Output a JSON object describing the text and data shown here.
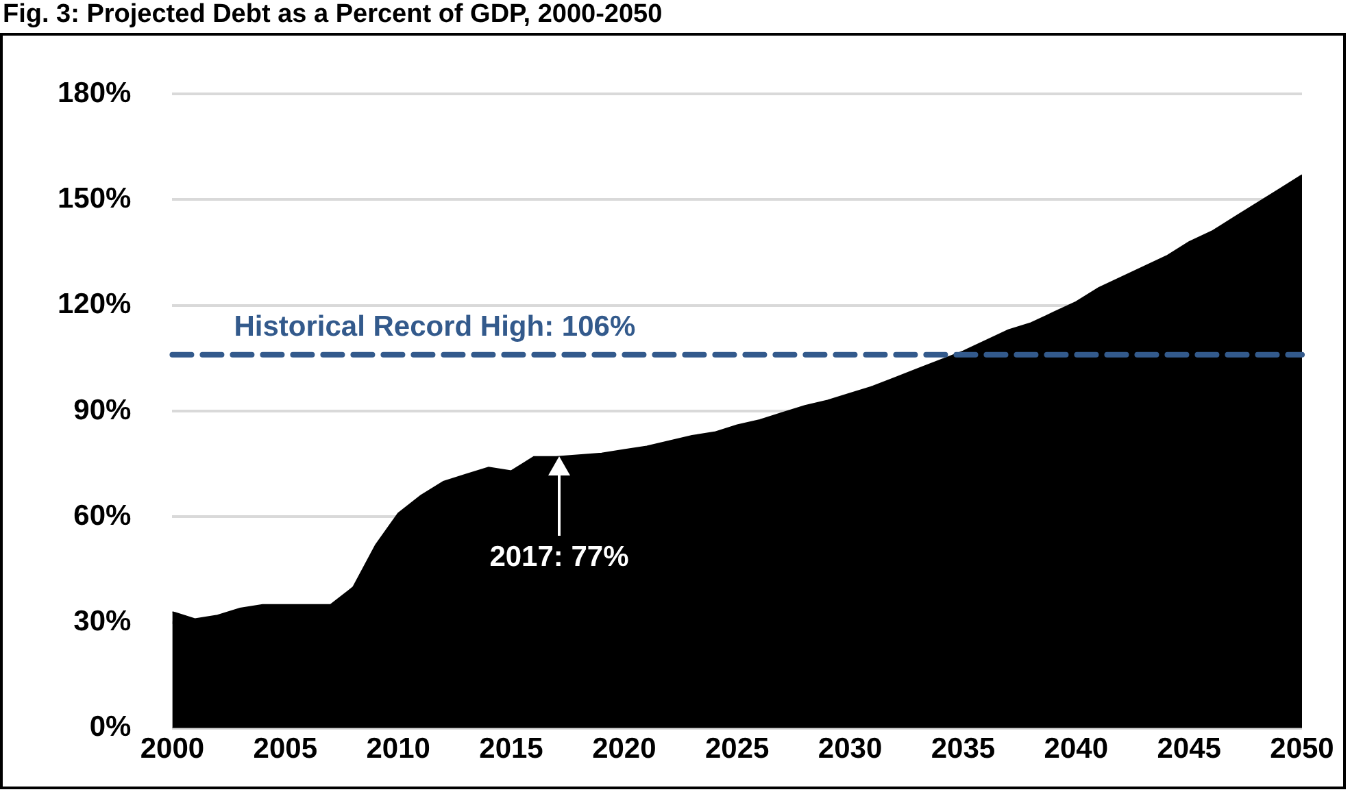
{
  "chart_data": {
    "type": "area",
    "title": "Fig. 3: Projected Debt as a Percent of GDP, 2000-2050",
    "x": [
      2000,
      2001,
      2002,
      2003,
      2004,
      2005,
      2006,
      2007,
      2008,
      2009,
      2010,
      2011,
      2012,
      2013,
      2014,
      2015,
      2016,
      2017,
      2018,
      2019,
      2020,
      2021,
      2022,
      2023,
      2024,
      2025,
      2026,
      2027,
      2028,
      2029,
      2030,
      2031,
      2032,
      2033,
      2034,
      2035,
      2036,
      2037,
      2038,
      2039,
      2040,
      2041,
      2042,
      2043,
      2044,
      2045,
      2046,
      2047,
      2048,
      2049,
      2050
    ],
    "series": [
      {
        "color": "#000000",
        "values": [
          33,
          31,
          32,
          34,
          35,
          35,
          35,
          35,
          40,
          52,
          61,
          66,
          70,
          72,
          74,
          73,
          77,
          77,
          77.5,
          78,
          79,
          80,
          81.5,
          83,
          84,
          86,
          87.5,
          89.5,
          91.5,
          93,
          95,
          97,
          99.5,
          102,
          104.5,
          107,
          110,
          113,
          115,
          118,
          121,
          125,
          128,
          131,
          134,
          138,
          141,
          145,
          149,
          153,
          157
        ]
      }
    ],
    "xlim": [
      2000,
      2050
    ],
    "xticks": [
      2000,
      2005,
      2010,
      2015,
      2020,
      2025,
      2030,
      2035,
      2040,
      2045,
      2050
    ],
    "ylim": [
      0,
      180
    ],
    "yticks": [
      {
        "value": 0,
        "label": "0%"
      },
      {
        "value": 30,
        "label": "30%"
      },
      {
        "value": 60,
        "label": "60%"
      },
      {
        "value": 90,
        "label": "90%"
      },
      {
        "value": 120,
        "label": "120%"
      },
      {
        "value": 150,
        "label": "150%"
      },
      {
        "value": 180,
        "label": "180%"
      }
    ],
    "grid": "y",
    "legend": false,
    "ref_lines": [
      {
        "axis": "y",
        "value": 106,
        "label": "Historical Record High: 106%",
        "color": "#335a8c",
        "line_style": "dashed"
      }
    ],
    "annotations": [
      "2017: 77%"
    ]
  }
}
